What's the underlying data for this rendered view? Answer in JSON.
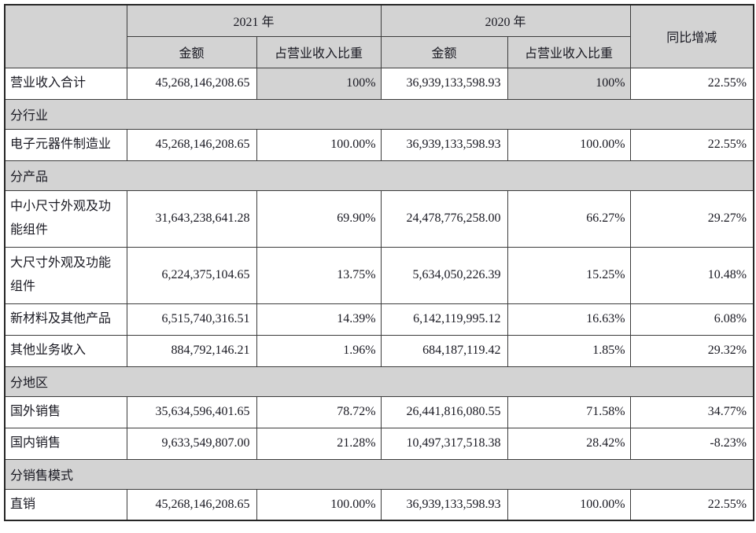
{
  "table": {
    "header": {
      "group_2021": "2021 年",
      "group_2020": "2020 年",
      "amount": "金额",
      "ratio": "占营业收入比重",
      "yoy": "同比增减"
    },
    "rows": [
      {
        "type": "data",
        "label": "营业收入合计",
        "a2021": "45,268,146,208.65",
        "r2021": "100%",
        "a2020": "36,939,133,598.93",
        "r2020": "100%",
        "yoy": "22.55%",
        "shaded_ratios": true
      },
      {
        "type": "section",
        "label": "分行业"
      },
      {
        "type": "data",
        "label": "电子元器件制造业",
        "a2021": "45,268,146,208.65",
        "r2021": "100.00%",
        "a2020": "36,939,133,598.93",
        "r2020": "100.00%",
        "yoy": "22.55%"
      },
      {
        "type": "section",
        "label": "分产品"
      },
      {
        "type": "data",
        "label": "中小尺寸外观及功能组件",
        "a2021": "31,643,238,641.28",
        "r2021": "69.90%",
        "a2020": "24,478,776,258.00",
        "r2020": "66.27%",
        "yoy": "29.27%",
        "tall": true
      },
      {
        "type": "data",
        "label": "大尺寸外观及功能组件",
        "a2021": "6,224,375,104.65",
        "r2021": "13.75%",
        "a2020": "5,634,050,226.39",
        "r2020": "15.25%",
        "yoy": "10.48%",
        "tall": true
      },
      {
        "type": "data",
        "label": "新材料及其他产品",
        "a2021": "6,515,740,316.51",
        "r2021": "14.39%",
        "a2020": "6,142,119,995.12",
        "r2020": "16.63%",
        "yoy": "6.08%"
      },
      {
        "type": "data",
        "label": "其他业务收入",
        "a2021": "884,792,146.21",
        "r2021": "1.96%",
        "a2020": "684,187,119.42",
        "r2020": "1.85%",
        "yoy": "29.32%"
      },
      {
        "type": "section",
        "label": "分地区"
      },
      {
        "type": "data",
        "label": "国外销售",
        "a2021": "35,634,596,401.65",
        "r2021": "78.72%",
        "a2020": "26,441,816,080.55",
        "r2020": "71.58%",
        "yoy": "34.77%"
      },
      {
        "type": "data",
        "label": "国内销售",
        "a2021": "9,633,549,807.00",
        "r2021": "21.28%",
        "a2020": "10,497,317,518.38",
        "r2020": "28.42%",
        "yoy": "-8.23%"
      },
      {
        "type": "section",
        "label": "分销售模式"
      },
      {
        "type": "data",
        "label": "直销",
        "a2021": "45,268,146,208.65",
        "r2021": "100.00%",
        "a2020": "36,939,133,598.93",
        "r2020": "100.00%",
        "yoy": "22.55%"
      }
    ]
  }
}
